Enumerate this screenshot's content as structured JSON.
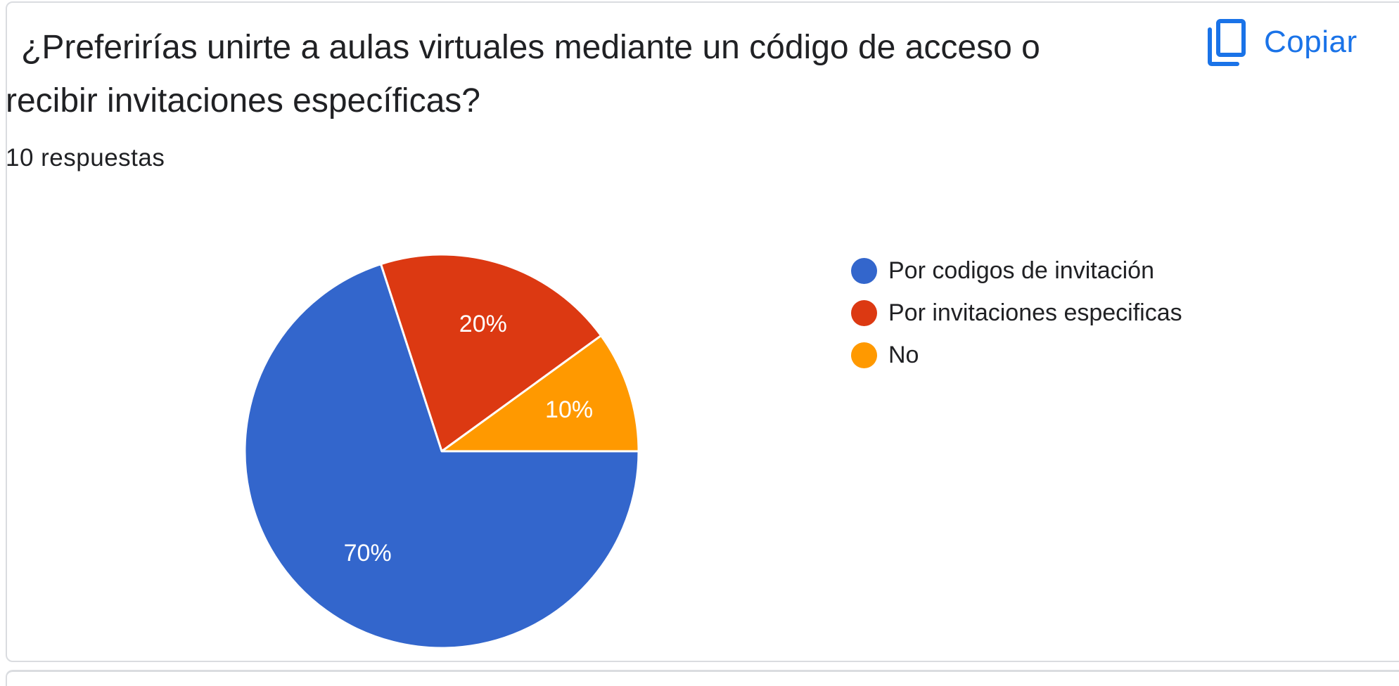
{
  "question": {
    "title": "¿Preferirías unirte a aulas virtuales mediante un código de acceso o recibir invitaciones específicas?",
    "responses": "10 respuestas"
  },
  "copy_button": {
    "label": "Copiar",
    "icon": "copy-icon",
    "color": "#1a73e8"
  },
  "chart_data": {
    "type": "pie",
    "categories": [
      "Por codigos de invitación",
      "Por invitaciones especificas",
      "No"
    ],
    "values": [
      70,
      20,
      10
    ],
    "value_labels": [
      "70%",
      "20%",
      "10%"
    ],
    "colors": [
      "#3366cc",
      "#dc3912",
      "#ff9900"
    ],
    "legend_position": "right",
    "start": "3 o'clock, clockwise"
  }
}
